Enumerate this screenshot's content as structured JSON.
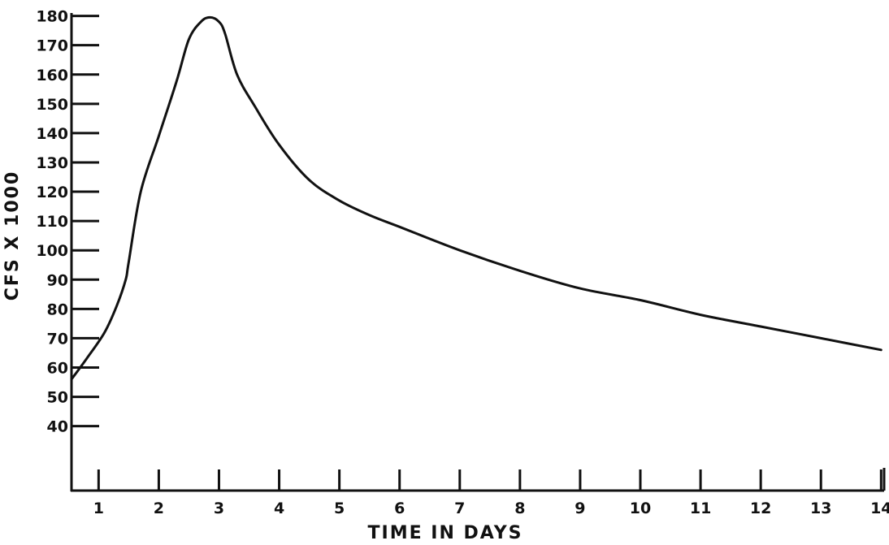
{
  "colors": {
    "line": "#111111",
    "background": "#ffffff"
  },
  "chart_data": {
    "type": "line",
    "title": "",
    "xlabel": "TIME IN DAYS",
    "ylabel": "CFS X 1000",
    "xlim": [
      0.55,
      14.05
    ],
    "ylim": [
      18,
      181
    ],
    "x_ticks": [
      1,
      2,
      3,
      4,
      5,
      6,
      7,
      8,
      9,
      10,
      11,
      12,
      13,
      14
    ],
    "x_tick_labels": [
      "1",
      "2",
      "3",
      "4",
      "5",
      "6",
      "7",
      "8",
      "9",
      "10",
      "11",
      "12",
      "13",
      "14"
    ],
    "y_ticks": [
      40,
      50,
      60,
      70,
      80,
      90,
      100,
      110,
      120,
      130,
      140,
      150,
      160,
      170,
      180
    ],
    "y_tick_labels": [
      "40",
      "50",
      "60",
      "70",
      "80",
      "90",
      "100",
      "110",
      "120",
      "130",
      "140",
      "150",
      "160",
      "170",
      "180"
    ],
    "grid": false,
    "legend": "none",
    "series": [
      {
        "x": [
          0.55,
          0.8,
          1.1,
          1.3,
          1.45,
          1.5,
          1.7,
          2.0,
          2.3,
          2.5,
          2.7,
          2.85,
          3.0,
          3.1,
          3.3,
          3.6,
          4.0,
          4.5,
          5.0,
          5.5,
          6.0,
          7.0,
          8.0,
          9.0,
          10.0,
          11.0,
          12.0,
          13.0,
          14.0
        ],
        "y": [
          56,
          63,
          72,
          81,
          90,
          96,
          120,
          139,
          158,
          172,
          178,
          179.5,
          178,
          174,
          160,
          149,
          136,
          124,
          117,
          112,
          108,
          100,
          93,
          87,
          83,
          78,
          74,
          70,
          66
        ]
      }
    ]
  }
}
